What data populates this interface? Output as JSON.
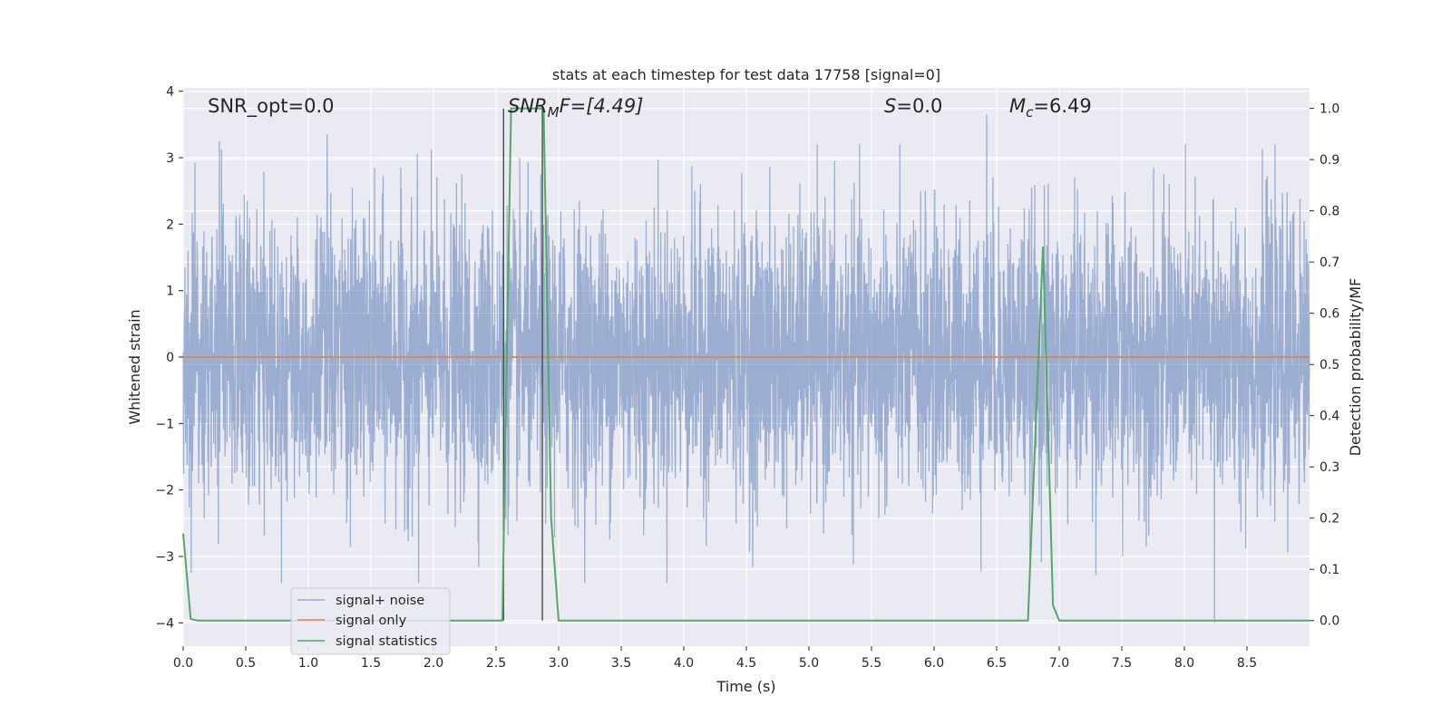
{
  "chart_data": {
    "type": "line",
    "title": "stats at each timestep for test data 17758 [signal=0]",
    "xlabel": "Time (s)",
    "ylabel": "Whitened strain",
    "ylabel_right": "Detection probability/MF",
    "xlim": [
      0.0,
      9.0
    ],
    "ylim": [
      -4.35,
      4.05
    ],
    "ylim_right": [
      -0.05,
      1.04
    ],
    "x_ticks": [
      "0.0",
      "0.5",
      "1.0",
      "1.5",
      "2.0",
      "2.5",
      "3.0",
      "3.5",
      "4.0",
      "4.5",
      "5.0",
      "5.5",
      "6.0",
      "6.5",
      "7.0",
      "7.5",
      "8.0",
      "8.5"
    ],
    "y_ticks": [
      "4",
      "3",
      "2",
      "1",
      "0",
      "−1",
      "−2",
      "−3",
      "−4"
    ],
    "y_ticks_right": [
      "1.0",
      "0.9",
      "0.8",
      "0.7",
      "0.6",
      "0.5",
      "0.4",
      "0.3",
      "0.2",
      "0.1",
      "0.0"
    ],
    "grid": true,
    "legend_position": "lower-left",
    "annotations": {
      "snr_opt": "SNR_opt=0.0",
      "snr_mf_main": "SNR",
      "snr_mf_sub": "M",
      "snr_mf_rest": "F=[4.49]",
      "s_italic": "S",
      "s_value": "=0.0",
      "mc_italic": "M",
      "mc_sub": "c",
      "mc_value": "=6.49"
    },
    "series": [
      {
        "name": "signal+ noise",
        "color": "#4c72b0",
        "opacity": 0.5,
        "axis": "left",
        "description": "dense whitened noise, approx. N(0,1), extremes about +3.65 and -4.0",
        "sample_rate_hz": 512,
        "extremes": [
          [
            0.29,
            3.25
          ],
          [
            1.15,
            3.35
          ],
          [
            1.88,
            -3.4
          ],
          [
            6.42,
            3.65
          ],
          [
            8.24,
            -4.0
          ]
        ]
      },
      {
        "name": "signal only",
        "color": "#dd8452",
        "axis": "left",
        "x": [
          0.0,
          9.0
        ],
        "y": [
          0.0,
          0.0
        ]
      },
      {
        "name": "signal statistics",
        "color": "#55a868",
        "axis": "right",
        "x": [
          0.0,
          0.06,
          0.12,
          2.55,
          2.62,
          2.88,
          2.94,
          3.0,
          6.75,
          6.87,
          6.95,
          7.0,
          9.0
        ],
        "y": [
          0.17,
          0.003,
          0.0,
          0.0,
          1.0,
          1.0,
          0.2,
          0.0,
          0.0,
          0.73,
          0.03,
          0.0,
          0.0
        ]
      }
    ],
    "markers": {
      "color": "#4a4a4a",
      "x": [
        2.56,
        2.87
      ],
      "y_top": 1.0,
      "y_bottom": 0.0
    }
  }
}
